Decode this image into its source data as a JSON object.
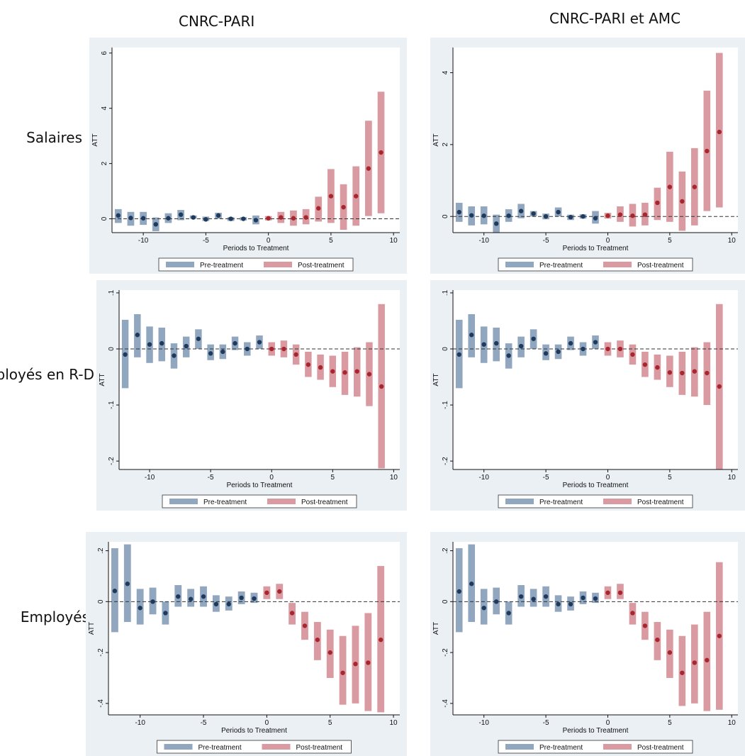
{
  "columns": [
    "CNRC-PARI",
    "CNRC-PARI et AMC"
  ],
  "rows": [
    "Salaires",
    "Employés en R-D",
    "Employés"
  ],
  "colors": {
    "pre": "#91a7bf",
    "post": "#d99ba1",
    "pre_dot": "#1f3a5c",
    "post_dot": "#a8262f",
    "panel_bg": "#eaf0f4",
    "plot_bg": "#ffffff"
  },
  "chart_data": [
    {
      "type": "scatter",
      "row": 0,
      "col": 0,
      "xlabel": "Periods to Treatment",
      "ylabel": "ATT",
      "xlim": [
        -12.5,
        10.5
      ],
      "ylim": [
        -0.5,
        6.2
      ],
      "xticks": [
        -10,
        -5,
        0,
        5,
        10
      ],
      "yticks": [
        0,
        2,
        4,
        6
      ],
      "yticklabels": [
        "0",
        "2",
        "4",
        "6"
      ],
      "legend": [
        "Pre-treatment",
        "Post-treatment"
      ],
      "legend_position": "bottom",
      "points": [
        {
          "x": -12,
          "y": 0.12,
          "lo": -0.15,
          "hi": 0.35
        },
        {
          "x": -11,
          "y": 0.03,
          "lo": -0.25,
          "hi": 0.25
        },
        {
          "x": -10,
          "y": 0.02,
          "lo": -0.22,
          "hi": 0.25
        },
        {
          "x": -9,
          "y": -0.2,
          "lo": -0.45,
          "hi": 0.05
        },
        {
          "x": -8,
          "y": 0.02,
          "lo": -0.15,
          "hi": 0.2
        },
        {
          "x": -7,
          "y": 0.15,
          "lo": -0.05,
          "hi": 0.32
        },
        {
          "x": -6,
          "y": 0.05,
          "lo": 0.0,
          "hi": 0.12
        },
        {
          "x": -5,
          "y": -0.02,
          "lo": -0.08,
          "hi": 0.08
        },
        {
          "x": -4,
          "y": 0.12,
          "lo": 0.0,
          "hi": 0.22
        },
        {
          "x": -3,
          "y": 0.0,
          "lo": -0.08,
          "hi": 0.06
        },
        {
          "x": -2,
          "y": 0.0,
          "lo": -0.06,
          "hi": 0.06
        },
        {
          "x": -1,
          "y": -0.05,
          "lo": -0.2,
          "hi": 0.12
        },
        {
          "x": 0,
          "y": 0.02,
          "lo": -0.06,
          "hi": 0.1
        },
        {
          "x": 1,
          "y": 0.05,
          "lo": -0.15,
          "hi": 0.25
        },
        {
          "x": 2,
          "y": 0.02,
          "lo": -0.25,
          "hi": 0.3
        },
        {
          "x": 3,
          "y": 0.05,
          "lo": -0.2,
          "hi": 0.35
        },
        {
          "x": 4,
          "y": 0.38,
          "lo": -0.1,
          "hi": 0.8
        },
        {
          "x": 5,
          "y": 0.82,
          "lo": -0.15,
          "hi": 1.8
        },
        {
          "x": 6,
          "y": 0.42,
          "lo": -0.4,
          "hi": 1.25
        },
        {
          "x": 7,
          "y": 0.82,
          "lo": -0.25,
          "hi": 1.9
        },
        {
          "x": 8,
          "y": 1.82,
          "lo": 0.1,
          "hi": 3.55
        },
        {
          "x": 9,
          "y": 2.4,
          "lo": 0.2,
          "hi": 4.6
        }
      ]
    },
    {
      "type": "scatter",
      "row": 0,
      "col": 1,
      "xlabel": "Periods to Treatment",
      "ylabel": "ATT",
      "xlim": [
        -12.5,
        10.5
      ],
      "ylim": [
        -0.45,
        4.7
      ],
      "xticks": [
        -10,
        -5,
        0,
        5,
        10
      ],
      "yticks": [
        0,
        2,
        4
      ],
      "yticklabels": [
        "0",
        "2",
        "4"
      ],
      "legend": [
        "Pre-treatment",
        "Post-treatment"
      ],
      "legend_position": "bottom",
      "points": [
        {
          "x": -12,
          "y": 0.12,
          "lo": -0.15,
          "hi": 0.38
        },
        {
          "x": -11,
          "y": 0.03,
          "lo": -0.25,
          "hi": 0.28
        },
        {
          "x": -10,
          "y": 0.02,
          "lo": -0.22,
          "hi": 0.28
        },
        {
          "x": -9,
          "y": -0.2,
          "lo": -0.45,
          "hi": 0.05
        },
        {
          "x": -8,
          "y": 0.02,
          "lo": -0.15,
          "hi": 0.2
        },
        {
          "x": -7,
          "y": 0.15,
          "lo": -0.05,
          "hi": 0.35
        },
        {
          "x": -6,
          "y": 0.08,
          "lo": 0.0,
          "hi": 0.15
        },
        {
          "x": -5,
          "y": 0.0,
          "lo": -0.08,
          "hi": 0.08
        },
        {
          "x": -4,
          "y": 0.12,
          "lo": 0.0,
          "hi": 0.25
        },
        {
          "x": -3,
          "y": -0.02,
          "lo": -0.1,
          "hi": 0.05
        },
        {
          "x": -2,
          "y": 0.0,
          "lo": -0.06,
          "hi": 0.06
        },
        {
          "x": -1,
          "y": -0.05,
          "lo": -0.2,
          "hi": 0.15
        },
        {
          "x": 0,
          "y": 0.02,
          "lo": -0.06,
          "hi": 0.1
        },
        {
          "x": 1,
          "y": 0.05,
          "lo": -0.15,
          "hi": 0.28
        },
        {
          "x": 2,
          "y": 0.02,
          "lo": -0.28,
          "hi": 0.35
        },
        {
          "x": 3,
          "y": 0.05,
          "lo": -0.25,
          "hi": 0.38
        },
        {
          "x": 4,
          "y": 0.38,
          "lo": -0.1,
          "hi": 0.8
        },
        {
          "x": 5,
          "y": 0.82,
          "lo": -0.15,
          "hi": 1.8
        },
        {
          "x": 6,
          "y": 0.42,
          "lo": -0.4,
          "hi": 1.25
        },
        {
          "x": 7,
          "y": 0.82,
          "lo": -0.25,
          "hi": 1.9
        },
        {
          "x": 8,
          "y": 1.82,
          "lo": 0.15,
          "hi": 3.5
        },
        {
          "x": 9,
          "y": 2.35,
          "lo": 0.25,
          "hi": 4.55
        }
      ]
    },
    {
      "type": "scatter",
      "row": 1,
      "col": 0,
      "xlabel": "Periods to Treatment",
      "ylabel": "ATT",
      "xlim": [
        -12.5,
        10.5
      ],
      "ylim": [
        -0.215,
        0.105
      ],
      "xticks": [
        -10,
        -5,
        0,
        5,
        10
      ],
      "yticks": [
        0.1,
        0,
        -0.1,
        -0.2
      ],
      "yticklabels": [
        ".1",
        "0",
        "-.1",
        "-.2"
      ],
      "legend": [
        "Pre-treatment",
        "Post-treatment"
      ],
      "legend_position": "bottom",
      "points": [
        {
          "x": -12,
          "y": -0.01,
          "lo": -0.07,
          "hi": 0.052
        },
        {
          "x": -11,
          "y": 0.025,
          "lo": -0.015,
          "hi": 0.062
        },
        {
          "x": -10,
          "y": 0.008,
          "lo": -0.025,
          "hi": 0.04
        },
        {
          "x": -9,
          "y": 0.01,
          "lo": -0.022,
          "hi": 0.038
        },
        {
          "x": -8,
          "y": -0.012,
          "lo": -0.035,
          "hi": 0.01
        },
        {
          "x": -7,
          "y": 0.005,
          "lo": -0.015,
          "hi": 0.022
        },
        {
          "x": -6,
          "y": 0.018,
          "lo": 0.0,
          "hi": 0.035
        },
        {
          "x": -5,
          "y": -0.008,
          "lo": -0.02,
          "hi": 0.008
        },
        {
          "x": -4,
          "y": -0.005,
          "lo": -0.018,
          "hi": 0.008
        },
        {
          "x": -3,
          "y": 0.01,
          "lo": -0.002,
          "hi": 0.022
        },
        {
          "x": -2,
          "y": 0.0,
          "lo": -0.012,
          "hi": 0.012
        },
        {
          "x": -1,
          "y": 0.012,
          "lo": 0.0,
          "hi": 0.024
        },
        {
          "x": 0,
          "y": 0.0,
          "lo": -0.012,
          "hi": 0.012
        },
        {
          "x": 1,
          "y": 0.0,
          "lo": -0.015,
          "hi": 0.015
        },
        {
          "x": 2,
          "y": -0.01,
          "lo": -0.028,
          "hi": 0.008
        },
        {
          "x": 3,
          "y": -0.028,
          "lo": -0.05,
          "hi": -0.005
        },
        {
          "x": 4,
          "y": -0.033,
          "lo": -0.055,
          "hi": -0.01
        },
        {
          "x": 5,
          "y": -0.04,
          "lo": -0.068,
          "hi": -0.012
        },
        {
          "x": 6,
          "y": -0.042,
          "lo": -0.082,
          "hi": -0.005
        },
        {
          "x": 7,
          "y": -0.04,
          "lo": -0.085,
          "hi": 0.003
        },
        {
          "x": 8,
          "y": -0.045,
          "lo": -0.102,
          "hi": 0.012
        },
        {
          "x": 9,
          "y": -0.067,
          "lo": -0.213,
          "hi": 0.08
        }
      ]
    },
    {
      "type": "scatter",
      "row": 1,
      "col": 1,
      "xlabel": "Periods to Treatment",
      "ylabel": "ATT",
      "xlim": [
        -12.5,
        10.5
      ],
      "ylim": [
        -0.215,
        0.105
      ],
      "xticks": [
        -10,
        -5,
        0,
        5,
        10
      ],
      "yticks": [
        0.1,
        0,
        -0.1,
        -0.2
      ],
      "yticklabels": [
        ".1",
        "0",
        "-.1",
        "-.2"
      ],
      "legend": [
        "Pre-treatment",
        "Post-treatment"
      ],
      "legend_position": "bottom",
      "points": [
        {
          "x": -12,
          "y": -0.01,
          "lo": -0.07,
          "hi": 0.052
        },
        {
          "x": -11,
          "y": 0.025,
          "lo": -0.015,
          "hi": 0.062
        },
        {
          "x": -10,
          "y": 0.008,
          "lo": -0.025,
          "hi": 0.04
        },
        {
          "x": -9,
          "y": 0.01,
          "lo": -0.022,
          "hi": 0.038
        },
        {
          "x": -8,
          "y": -0.012,
          "lo": -0.035,
          "hi": 0.01
        },
        {
          "x": -7,
          "y": 0.005,
          "lo": -0.015,
          "hi": 0.022
        },
        {
          "x": -6,
          "y": 0.018,
          "lo": 0.0,
          "hi": 0.035
        },
        {
          "x": -5,
          "y": -0.008,
          "lo": -0.02,
          "hi": 0.008
        },
        {
          "x": -4,
          "y": -0.005,
          "lo": -0.018,
          "hi": 0.008
        },
        {
          "x": -3,
          "y": 0.01,
          "lo": -0.002,
          "hi": 0.022
        },
        {
          "x": -2,
          "y": 0.0,
          "lo": -0.012,
          "hi": 0.012
        },
        {
          "x": -1,
          "y": 0.012,
          "lo": 0.0,
          "hi": 0.024
        },
        {
          "x": 0,
          "y": 0.0,
          "lo": -0.012,
          "hi": 0.012
        },
        {
          "x": 1,
          "y": 0.0,
          "lo": -0.015,
          "hi": 0.015
        },
        {
          "x": 2,
          "y": -0.01,
          "lo": -0.028,
          "hi": 0.008
        },
        {
          "x": 3,
          "y": -0.028,
          "lo": -0.05,
          "hi": -0.005
        },
        {
          "x": 4,
          "y": -0.033,
          "lo": -0.055,
          "hi": -0.01
        },
        {
          "x": 5,
          "y": -0.042,
          "lo": -0.068,
          "hi": -0.012
        },
        {
          "x": 6,
          "y": -0.043,
          "lo": -0.082,
          "hi": -0.005
        },
        {
          "x": 7,
          "y": -0.04,
          "lo": -0.085,
          "hi": 0.003
        },
        {
          "x": 8,
          "y": -0.043,
          "lo": -0.1,
          "hi": 0.012
        },
        {
          "x": 9,
          "y": -0.067,
          "lo": -0.215,
          "hi": 0.08
        }
      ]
    },
    {
      "type": "scatter",
      "row": 2,
      "col": 0,
      "xlabel": "Periods to Treatment",
      "ylabel": "ATT",
      "xlim": [
        -12.5,
        10.5
      ],
      "ylim": [
        -0.445,
        0.235
      ],
      "xticks": [
        -10,
        -5,
        0,
        5,
        10
      ],
      "yticks": [
        0.2,
        0,
        -0.2,
        -0.4
      ],
      "yticklabels": [
        ".2",
        "0",
        "-.2",
        "-.4"
      ],
      "legend": [
        "Pre-treatment",
        "Post-treatment"
      ],
      "legend_position": "bottom",
      "points": [
        {
          "x": -12,
          "y": 0.042,
          "lo": -0.12,
          "hi": 0.21
        },
        {
          "x": -11,
          "y": 0.07,
          "lo": -0.08,
          "hi": 0.225
        },
        {
          "x": -10,
          "y": -0.025,
          "lo": -0.09,
          "hi": 0.05
        },
        {
          "x": -9,
          "y": 0.0,
          "lo": -0.05,
          "hi": 0.055
        },
        {
          "x": -8,
          "y": -0.045,
          "lo": -0.09,
          "hi": 0.0
        },
        {
          "x": -7,
          "y": 0.02,
          "lo": -0.02,
          "hi": 0.065
        },
        {
          "x": -6,
          "y": 0.01,
          "lo": -0.02,
          "hi": 0.05
        },
        {
          "x": -5,
          "y": 0.02,
          "lo": -0.02,
          "hi": 0.06
        },
        {
          "x": -4,
          "y": -0.01,
          "lo": -0.04,
          "hi": 0.025
        },
        {
          "x": -3,
          "y": -0.01,
          "lo": -0.035,
          "hi": 0.02
        },
        {
          "x": -2,
          "y": 0.015,
          "lo": -0.01,
          "hi": 0.04
        },
        {
          "x": -1,
          "y": 0.012,
          "lo": -0.005,
          "hi": 0.035
        },
        {
          "x": 0,
          "y": 0.035,
          "lo": 0.01,
          "hi": 0.06
        },
        {
          "x": 1,
          "y": 0.04,
          "lo": 0.01,
          "hi": 0.07
        },
        {
          "x": 2,
          "y": -0.045,
          "lo": -0.09,
          "hi": -0.005
        },
        {
          "x": 3,
          "y": -0.095,
          "lo": -0.15,
          "hi": -0.04
        },
        {
          "x": 4,
          "y": -0.15,
          "lo": -0.23,
          "hi": -0.08
        },
        {
          "x": 5,
          "y": -0.2,
          "lo": -0.3,
          "hi": -0.11
        },
        {
          "x": 6,
          "y": -0.28,
          "lo": -0.405,
          "hi": -0.135
        },
        {
          "x": 7,
          "y": -0.245,
          "lo": -0.4,
          "hi": -0.095
        },
        {
          "x": 8,
          "y": -0.24,
          "lo": -0.43,
          "hi": -0.045
        },
        {
          "x": 9,
          "y": -0.15,
          "lo": -0.435,
          "hi": 0.14
        }
      ]
    },
    {
      "type": "scatter",
      "row": 2,
      "col": 1,
      "xlabel": "Periods to Treatment",
      "ylabel": "ATT",
      "xlim": [
        -12.5,
        10.5
      ],
      "ylim": [
        -0.445,
        0.235
      ],
      "xticks": [
        -10,
        -5,
        0,
        5,
        10
      ],
      "yticks": [
        0.2,
        0,
        -0.2,
        -0.4
      ],
      "yticklabels": [
        ".2",
        "0",
        "-.2",
        "-.4"
      ],
      "legend": [
        "Pre-treatment",
        "Post-treatment"
      ],
      "legend_position": "bottom",
      "points": [
        {
          "x": -12,
          "y": 0.04,
          "lo": -0.12,
          "hi": 0.21
        },
        {
          "x": -11,
          "y": 0.07,
          "lo": -0.08,
          "hi": 0.225
        },
        {
          "x": -10,
          "y": -0.025,
          "lo": -0.09,
          "hi": 0.05
        },
        {
          "x": -9,
          "y": 0.0,
          "lo": -0.05,
          "hi": 0.055
        },
        {
          "x": -8,
          "y": -0.045,
          "lo": -0.09,
          "hi": 0.0
        },
        {
          "x": -7,
          "y": 0.02,
          "lo": -0.02,
          "hi": 0.065
        },
        {
          "x": -6,
          "y": 0.01,
          "lo": -0.02,
          "hi": 0.05
        },
        {
          "x": -5,
          "y": 0.02,
          "lo": -0.02,
          "hi": 0.06
        },
        {
          "x": -4,
          "y": -0.01,
          "lo": -0.04,
          "hi": 0.025
        },
        {
          "x": -3,
          "y": -0.01,
          "lo": -0.035,
          "hi": 0.02
        },
        {
          "x": -2,
          "y": 0.015,
          "lo": -0.01,
          "hi": 0.04
        },
        {
          "x": -1,
          "y": 0.012,
          "lo": -0.005,
          "hi": 0.035
        },
        {
          "x": 0,
          "y": 0.035,
          "lo": 0.01,
          "hi": 0.06
        },
        {
          "x": 1,
          "y": 0.035,
          "lo": 0.01,
          "hi": 0.07
        },
        {
          "x": 2,
          "y": -0.045,
          "lo": -0.09,
          "hi": -0.005
        },
        {
          "x": 3,
          "y": -0.095,
          "lo": -0.15,
          "hi": -0.04
        },
        {
          "x": 4,
          "y": -0.15,
          "lo": -0.23,
          "hi": -0.08
        },
        {
          "x": 5,
          "y": -0.2,
          "lo": -0.3,
          "hi": -0.11
        },
        {
          "x": 6,
          "y": -0.28,
          "lo": -0.41,
          "hi": -0.135
        },
        {
          "x": 7,
          "y": -0.24,
          "lo": -0.4,
          "hi": -0.09
        },
        {
          "x": 8,
          "y": -0.23,
          "lo": -0.43,
          "hi": -0.04
        },
        {
          "x": 9,
          "y": -0.135,
          "lo": -0.425,
          "hi": 0.155
        }
      ]
    }
  ]
}
